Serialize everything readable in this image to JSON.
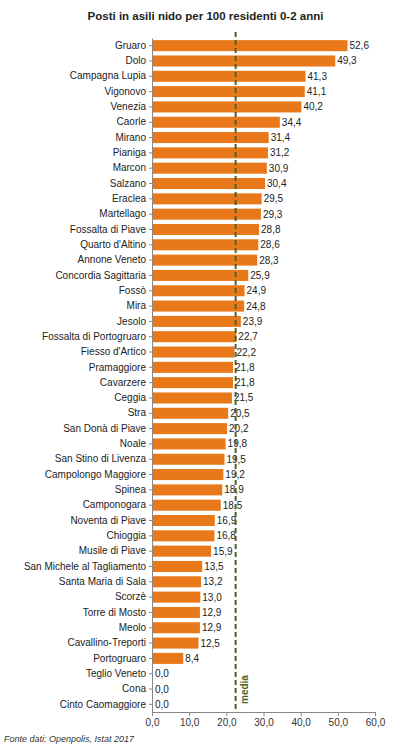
{
  "chart_data": {
    "type": "bar",
    "orientation": "horizontal",
    "title": "Posti in asili nido per 100 residenti 0-2 anni",
    "source": "Fonte dati: Openpolis, Istat 2017",
    "categories": [
      "Gruaro",
      "Dolo",
      "Campagna Lupia",
      "Vigonovo",
      "Venezia",
      "Caorle",
      "Mirano",
      "Pianiga",
      "Marcon",
      "Salzano",
      "Eraclea",
      "Martellago",
      "Fossalta di Piave",
      "Quarto d'Altino",
      "Annone Veneto",
      "Concordia Sagittaria",
      "Fossò",
      "Mira",
      "Jesolo",
      "Fossalta di Portogruaro",
      "Fiesso d'Artico",
      "Pramaggiore",
      "Cavarzere",
      "Ceggia",
      "Stra",
      "San Donà di Piave",
      "Noale",
      "San Stino di Livenza",
      "Campolongo Maggiore",
      "Spinea",
      "Camponogara",
      "Noventa di Piave",
      "Chioggia",
      "Musile di Piave",
      "San Michele al Tagliamento",
      "Santa Maria di Sala",
      "Scorzè",
      "Torre di Mosto",
      "Meolo",
      "Cavallino-Treporti",
      "Portogruaro",
      "Teglio Veneto",
      "Cona",
      "Cinto Caomaggiore"
    ],
    "values": [
      52.6,
      49.3,
      41.3,
      41.1,
      40.2,
      34.4,
      31.4,
      31.2,
      30.9,
      30.4,
      29.5,
      29.3,
      28.8,
      28.6,
      28.3,
      25.9,
      24.9,
      24.8,
      23.9,
      22.7,
      22.2,
      21.8,
      21.8,
      21.5,
      20.5,
      20.2,
      19.8,
      19.5,
      19.2,
      18.9,
      18.5,
      16.9,
      16.8,
      15.9,
      13.5,
      13.2,
      13.0,
      12.9,
      12.9,
      12.5,
      8.4,
      0,
      0,
      0
    ],
    "value_labels": [
      "52,6",
      "49,3",
      "41,3",
      "41,1",
      "40,2",
      "34,4",
      "31,4",
      "31,2",
      "30,9",
      "30,4",
      "29,5",
      "29,3",
      "28,8",
      "28,6",
      "28,3",
      "25,9",
      "24,9",
      "24,8",
      "23,9",
      "22,7",
      "22,2",
      "21,8",
      "21,8",
      "21,5",
      "20,5",
      "20,2",
      "19,8",
      "19,5",
      "19,2",
      "18,9",
      "18,5",
      "16,9",
      "16,8",
      "15,9",
      "13,5",
      "13,2",
      "13,0",
      "12,9",
      "12,9",
      "12,5",
      "8,4",
      "0,0",
      "0,0",
      "0,0"
    ],
    "data_labels": true,
    "color": "#e8781a",
    "xlim": [
      0,
      60
    ],
    "xticks": [
      {
        "value": 0,
        "label": "0,0"
      },
      {
        "value": 10,
        "label": "10,0"
      },
      {
        "value": 20,
        "label": "20,0"
      },
      {
        "value": 30,
        "label": "30,0"
      },
      {
        "value": 40,
        "label": "40,0"
      },
      {
        "value": 50,
        "label": "50,0"
      },
      {
        "value": 60,
        "label": "60,0"
      }
    ],
    "grid": false,
    "annotations": [
      {
        "label": "media",
        "value": 22.5
      }
    ]
  }
}
